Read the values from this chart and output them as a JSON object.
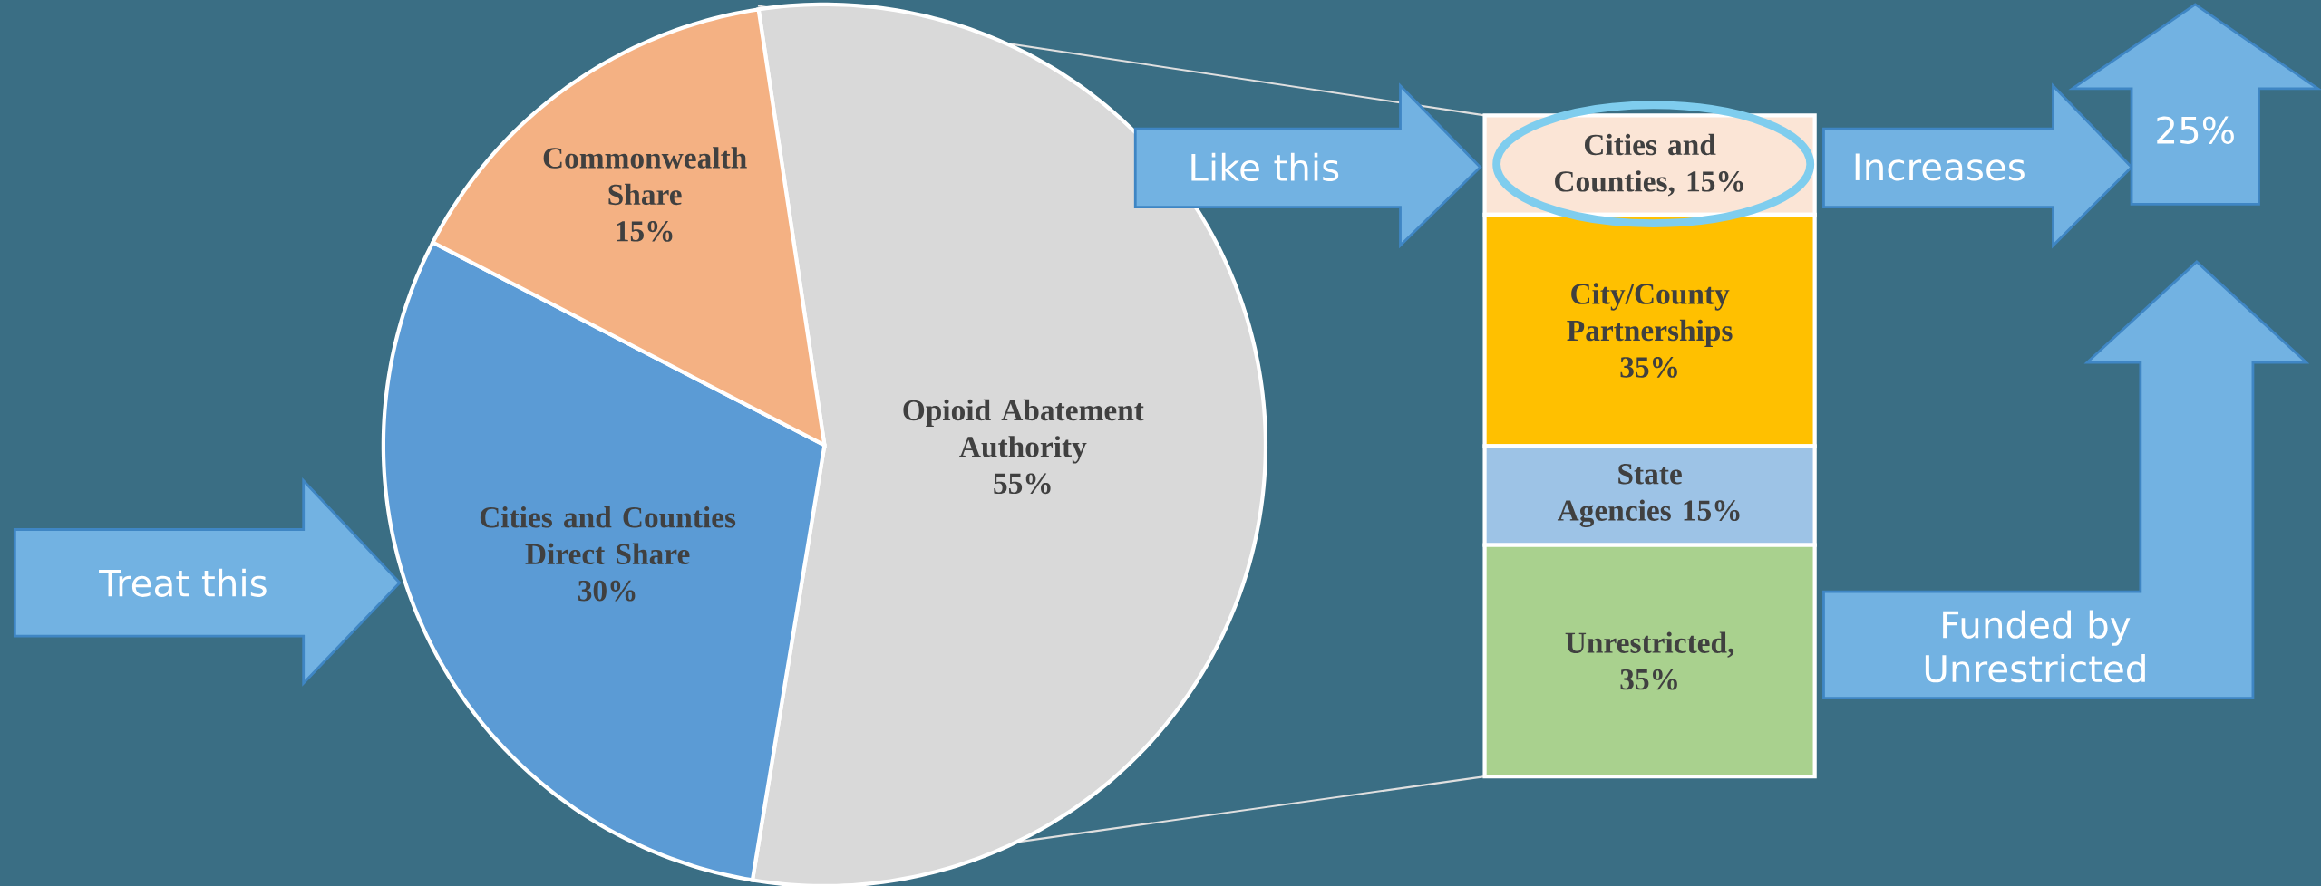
{
  "chart_data": [
    {
      "type": "pie",
      "categories": [
        "Opioid Abatement Authority",
        "Cities and Counties Direct Share",
        "Commonwealth Share"
      ],
      "values": [
        55,
        30,
        15
      ],
      "colors": [
        "#d9d9d9",
        "#5b9bd5",
        "#f4b183"
      ],
      "value_labels": [
        "55%",
        "30%",
        "15%"
      ],
      "annotations": [
        "Treat this"
      ]
    },
    {
      "type": "bar",
      "stacked": true,
      "categories": [
        null
      ],
      "series": [
        {
          "name": "Unrestricted,",
          "color": "#a9d18e",
          "values": [
            35
          ],
          "value_labels": [
            "35%"
          ]
        },
        {
          "name": "State Agencies",
          "color": "#9dc3e6",
          "values": [
            15
          ],
          "value_labels": [
            "15%"
          ]
        },
        {
          "name": "City/County Partnerships",
          "color": "#ffc000",
          "values": [
            35
          ],
          "value_labels": [
            "35%"
          ]
        },
        {
          "name": "Cities and Counties,",
          "color": "#fbe5d6",
          "values": [
            15
          ],
          "value_labels": [
            "15%"
          ]
        }
      ],
      "annotations": [
        "Like this",
        "Increases",
        "25%",
        "Funded by Unrestricted"
      ]
    }
  ]
}
